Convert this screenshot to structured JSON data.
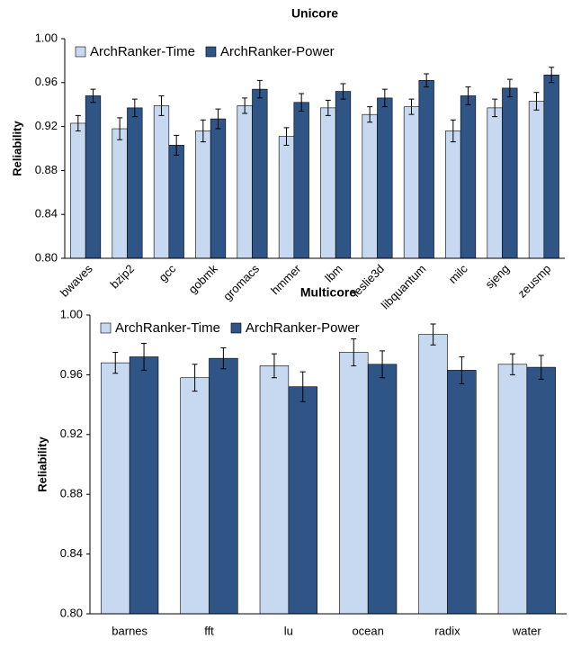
{
  "chart_data": [
    {
      "type": "bar",
      "title": "Unicore",
      "ylabel": "Reliability",
      "categories": [
        "bwaves",
        "bzip2",
        "gcc",
        "gobmk",
        "gromacs",
        "hmmer",
        "lbm",
        "leslie3d",
        "libquantum",
        "milc",
        "sjeng",
        "zeusmp"
      ],
      "series": [
        {
          "name": "ArchRanker-Time",
          "color": "#c6d9f1",
          "values": [
            0.923,
            0.918,
            0.939,
            0.916,
            0.939,
            0.911,
            0.937,
            0.931,
            0.938,
            0.916,
            0.937,
            0.943
          ],
          "errors": [
            0.007,
            0.01,
            0.009,
            0.01,
            0.007,
            0.008,
            0.007,
            0.007,
            0.007,
            0.01,
            0.008,
            0.008
          ]
        },
        {
          "name": "ArchRanker-Power",
          "color": "#2f5486",
          "values": [
            0.948,
            0.937,
            0.903,
            0.927,
            0.954,
            0.942,
            0.952,
            0.946,
            0.962,
            0.948,
            0.955,
            0.967
          ],
          "errors": [
            0.006,
            0.008,
            0.009,
            0.009,
            0.008,
            0.008,
            0.007,
            0.008,
            0.006,
            0.008,
            0.008,
            0.007
          ]
        }
      ],
      "ylim": [
        0.8,
        1.0
      ],
      "yticks": [
        {
          "value": 0.8,
          "label": "0.80"
        },
        {
          "value": 0.84,
          "label": "0.84"
        },
        {
          "value": 0.88,
          "label": "0.88"
        },
        {
          "value": 0.92,
          "label": "0.92"
        },
        {
          "value": 0.96,
          "label": "0.96"
        },
        {
          "value": 1.0,
          "label": "1.00"
        }
      ],
      "grid": false,
      "legend": "upper left"
    },
    {
      "type": "bar",
      "title": "Multicore",
      "ylabel": "Reliability",
      "categories": [
        "barnes",
        "fft",
        "lu",
        "ocean",
        "radix",
        "water"
      ],
      "series": [
        {
          "name": "ArchRanker-Time",
          "color": "#c6d9f1",
          "values": [
            0.968,
            0.958,
            0.966,
            0.975,
            0.987,
            0.967
          ],
          "errors": [
            0.007,
            0.009,
            0.008,
            0.009,
            0.007,
            0.007
          ]
        },
        {
          "name": "ArchRanker-Power",
          "color": "#2f5486",
          "values": [
            0.972,
            0.971,
            0.952,
            0.967,
            0.963,
            0.965
          ],
          "errors": [
            0.009,
            0.007,
            0.01,
            0.009,
            0.009,
            0.008
          ]
        }
      ],
      "ylim": [
        0.8,
        1.0
      ],
      "yticks": [
        {
          "value": 0.8,
          "label": "0.80"
        },
        {
          "value": 0.84,
          "label": "0.84"
        },
        {
          "value": 0.88,
          "label": "0.88"
        },
        {
          "value": 0.92,
          "label": "0.92"
        },
        {
          "value": 0.96,
          "label": "0.96"
        },
        {
          "value": 1.0,
          "label": "1.00"
        }
      ],
      "grid": false,
      "legend": "upper left"
    }
  ]
}
